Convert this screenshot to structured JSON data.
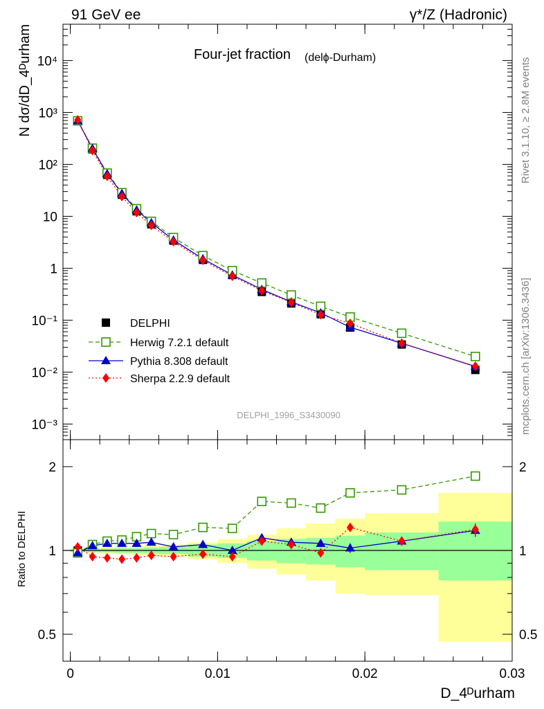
{
  "header": {
    "left": "91 GeV ee",
    "right": "γ*/Z (Hadronic)"
  },
  "side_labels": {
    "rivet": "Rivet 3.1.10, ≥ 2.8M events",
    "mcplots": "mcplots.cern.ch [arXiv:1306.3436]"
  },
  "colors": {
    "data": "#000000",
    "herwig": "#339900",
    "pythia": "#0000cc",
    "sherpa": "#ff0000",
    "band_inner": "#99ff99",
    "band_outer": "#ffff99"
  },
  "chart_data": [
    {
      "type": "scatter",
      "title": "Four-jet fraction",
      "title_suffix": "(delϕ-Durham)",
      "watermark": "DELPHI_1996_S3430090",
      "ylabel": "N dσ/dD_4ᴰurham",
      "yscale": "log",
      "ylim": [
        0.0005,
        50000
      ],
      "xlim": [
        -0.0005,
        0.03
      ],
      "y_tick_labels": [
        "10⁻³",
        "10⁻²",
        "10⁻¹",
        "1",
        "10",
        "10²",
        "10³",
        "10⁴"
      ],
      "legend_position": "bottom-left",
      "x": [
        0.0005,
        0.0015,
        0.0025,
        0.0035,
        0.0045,
        0.0055,
        0.007,
        0.009,
        0.011,
        0.013,
        0.015,
        0.017,
        0.019,
        0.0225,
        0.0275
      ],
      "series": [
        {
          "name": "DELPHI",
          "marker": "square",
          "values": [
            700,
            195,
            63,
            26,
            12.5,
            7.0,
            3.4,
            1.45,
            0.74,
            0.35,
            0.21,
            0.13,
            0.072,
            0.034,
            0.011
          ]
        },
        {
          "name": "Herwig 7.2.1 default",
          "marker": "open-square",
          "line": "dashed",
          "values": [
            690,
            205,
            68,
            28.5,
            14.0,
            8.0,
            3.9,
            1.75,
            0.9,
            0.52,
            0.305,
            0.185,
            0.115,
            0.056,
            0.02
          ]
        },
        {
          "name": "Pythia 8.308 default",
          "marker": "triangle",
          "line": "solid",
          "values": [
            690,
            203,
            66,
            27.5,
            13.2,
            7.5,
            3.5,
            1.52,
            0.74,
            0.39,
            0.225,
            0.138,
            0.073,
            0.036,
            0.0128
          ]
        },
        {
          "name": "Sherpa 2.2.9 default",
          "marker": "diamond",
          "line": "dotted",
          "values": [
            720,
            185,
            59,
            24,
            11.8,
            6.7,
            3.25,
            1.42,
            0.7,
            0.37,
            0.22,
            0.127,
            0.087,
            0.036,
            0.013
          ]
        }
      ]
    },
    {
      "type": "scatter",
      "ylabel": "Ratio to DELPHI",
      "xlabel": "D_4ᴰurham",
      "yscale": "log",
      "ylim": [
        0.4,
        2.5
      ],
      "xlim": [
        -0.0005,
        0.03
      ],
      "y_ticks": [
        0.5,
        1,
        2
      ],
      "y_tick_labels": [
        "0.5",
        "1",
        "2"
      ],
      "x_ticks": [
        0,
        0.01,
        0.02,
        0.03
      ],
      "x_tick_labels": [
        "0",
        "0.01",
        "0.02",
        "0.03"
      ],
      "bins": [
        [
          0,
          0.001
        ],
        [
          0.001,
          0.002
        ],
        [
          0.002,
          0.003
        ],
        [
          0.003,
          0.004
        ],
        [
          0.004,
          0.005
        ],
        [
          0.005,
          0.006
        ],
        [
          0.006,
          0.008
        ],
        [
          0.008,
          0.01
        ],
        [
          0.01,
          0.012
        ],
        [
          0.012,
          0.014
        ],
        [
          0.014,
          0.016
        ],
        [
          0.016,
          0.018
        ],
        [
          0.018,
          0.02
        ],
        [
          0.02,
          0.025
        ],
        [
          0.025,
          0.03
        ]
      ],
      "band_inner": [
        [
          0.99,
          1.01
        ],
        [
          0.985,
          1.015
        ],
        [
          0.985,
          1.015
        ],
        [
          0.98,
          1.02
        ],
        [
          0.98,
          1.02
        ],
        [
          0.975,
          1.025
        ],
        [
          0.97,
          1.03
        ],
        [
          0.95,
          1.05
        ],
        [
          0.94,
          1.06
        ],
        [
          0.92,
          1.08
        ],
        [
          0.9,
          1.1
        ],
        [
          0.89,
          1.11
        ],
        [
          0.87,
          1.13
        ],
        [
          0.85,
          1.16
        ],
        [
          0.78,
          1.27
        ]
      ],
      "band_outer": [
        [
          0.985,
          1.015
        ],
        [
          0.98,
          1.02
        ],
        [
          0.975,
          1.025
        ],
        [
          0.97,
          1.03
        ],
        [
          0.965,
          1.035
        ],
        [
          0.96,
          1.04
        ],
        [
          0.95,
          1.05
        ],
        [
          0.93,
          1.07
        ],
        [
          0.9,
          1.1
        ],
        [
          0.86,
          1.14
        ],
        [
          0.82,
          1.2
        ],
        [
          0.78,
          1.25
        ],
        [
          0.7,
          1.3
        ],
        [
          0.69,
          1.36
        ],
        [
          0.47,
          1.61
        ]
      ],
      "x": [
        0.0005,
        0.0015,
        0.0025,
        0.0035,
        0.0045,
        0.0055,
        0.007,
        0.009,
        0.011,
        0.013,
        0.015,
        0.017,
        0.019,
        0.0225,
        0.0275
      ],
      "series": [
        {
          "name": "Herwig 7.2.1 default",
          "values": [
            0.98,
            1.05,
            1.08,
            1.09,
            1.12,
            1.15,
            1.14,
            1.21,
            1.2,
            1.5,
            1.48,
            1.42,
            1.61,
            1.65,
            1.85
          ],
          "errors": [
            0,
            0,
            0,
            0,
            0,
            0,
            0,
            0,
            0,
            0,
            0,
            0,
            0.03,
            0.02,
            0.05
          ]
        },
        {
          "name": "Pythia 8.308 default",
          "values": [
            0.98,
            1.04,
            1.06,
            1.06,
            1.06,
            1.07,
            1.03,
            1.05,
            1.0,
            1.11,
            1.07,
            1.06,
            1.02,
            1.08,
            1.18
          ],
          "errors": [
            0,
            0,
            0,
            0,
            0,
            0,
            0,
            0,
            0,
            0,
            0.03,
            0.03,
            0.04,
            0.04,
            0.06
          ]
        },
        {
          "name": "Sherpa 2.2.9 default",
          "values": [
            1.03,
            0.95,
            0.94,
            0.93,
            0.94,
            0.96,
            0.95,
            0.97,
            0.95,
            1.08,
            1.05,
            0.98,
            1.21,
            1.08,
            1.19
          ],
          "errors": [
            0,
            0,
            0,
            0,
            0,
            0,
            0,
            0,
            0,
            0,
            0.02,
            0.03,
            0.04,
            0.04,
            0.06
          ]
        }
      ]
    }
  ]
}
